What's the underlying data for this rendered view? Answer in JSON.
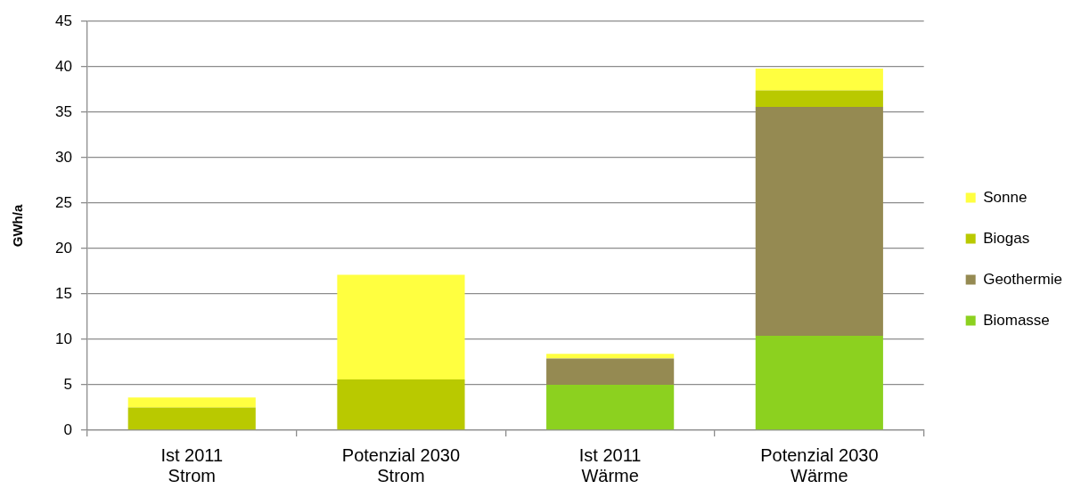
{
  "chart_data": {
    "type": "bar",
    "ylabel": "GWh/a",
    "categories": [
      "Ist 2011\nStrom",
      "Potenzial 2030\nStrom",
      "Ist 2011\nWärme",
      "Potenzial 2030\nWärme"
    ],
    "series": [
      {
        "name": "Biomasse",
        "color": "#8cd11f",
        "values": [
          null,
          null,
          5.0,
          10.4
        ]
      },
      {
        "name": "Geothermie",
        "color": "#958a52",
        "values": [
          null,
          null,
          2.9,
          25.2
        ]
      },
      {
        "name": "Biogas",
        "color": "#b9c900",
        "values": [
          2.5,
          5.6,
          null,
          1.8
        ]
      },
      {
        "name": "Sonne",
        "color": "#ffff40",
        "values": [
          1.1,
          11.5,
          0.5,
          2.4
        ]
      }
    ],
    "stacked": true,
    "ylim": [
      0,
      45
    ],
    "yticks": [
      0,
      5,
      10,
      15,
      20,
      25,
      30,
      35,
      40,
      45
    ],
    "grid": "y",
    "legend": "right"
  }
}
